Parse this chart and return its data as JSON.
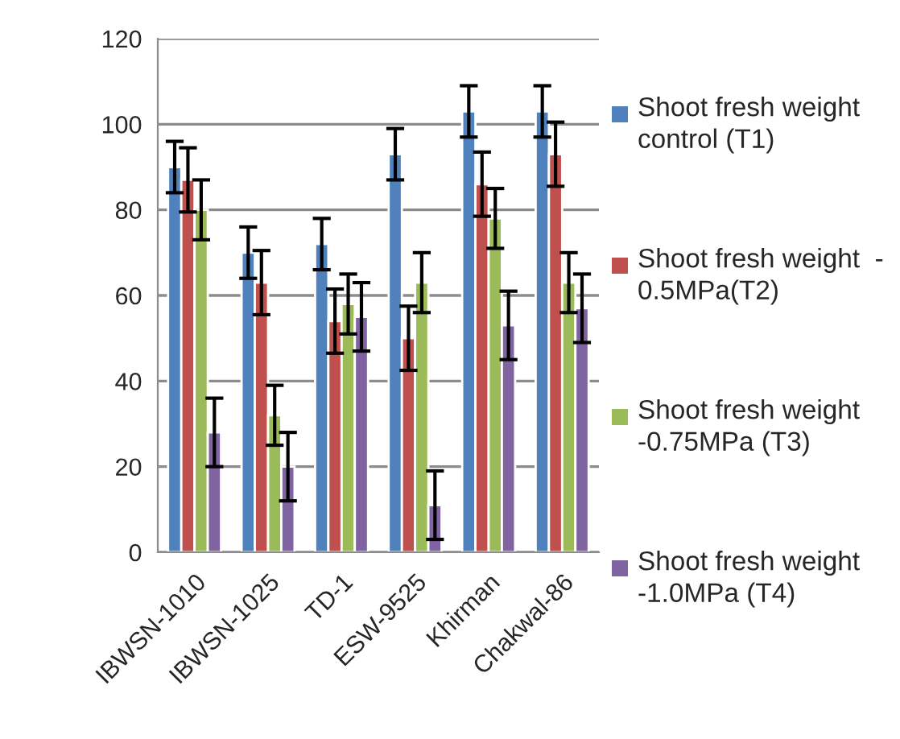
{
  "chart_data": {
    "type": "bar",
    "categories": [
      "IBWSN-1010",
      "IBWSN-1025",
      "TD-1",
      "ESW-9525",
      "Khirman",
      "Chakwal-86"
    ],
    "series": [
      {
        "name": "Shoot fresh weight control (T1)",
        "color": "#4f81bd",
        "values": [
          90,
          70,
          72,
          93,
          103,
          103
        ],
        "errors": [
          6,
          6,
          6,
          6,
          6,
          6
        ]
      },
      {
        "name": "Shoot fresh weight  - 0.5MPa(T2)",
        "color": "#c0504d",
        "values": [
          87,
          63,
          54,
          50,
          86,
          93
        ],
        "errors": [
          7.5,
          7.5,
          7.5,
          7.5,
          7.5,
          7.5
        ]
      },
      {
        "name": "Shoot fresh weight -0.75MPa (T3)",
        "color": "#9bbb59",
        "values": [
          80,
          32,
          58,
          63,
          78,
          63
        ],
        "errors": [
          7,
          7,
          7,
          7,
          7,
          7
        ]
      },
      {
        "name": "Shoot fresh weight -1.0MPa (T4)",
        "color": "#8064a2",
        "values": [
          28,
          20,
          55,
          11,
          53,
          57
        ],
        "errors": [
          8,
          8,
          8,
          8,
          8,
          8
        ]
      }
    ],
    "ylim": [
      0,
      120
    ],
    "yticks": [
      0,
      20,
      40,
      60,
      80,
      100,
      120
    ],
    "grid": "y",
    "legend": "right"
  }
}
